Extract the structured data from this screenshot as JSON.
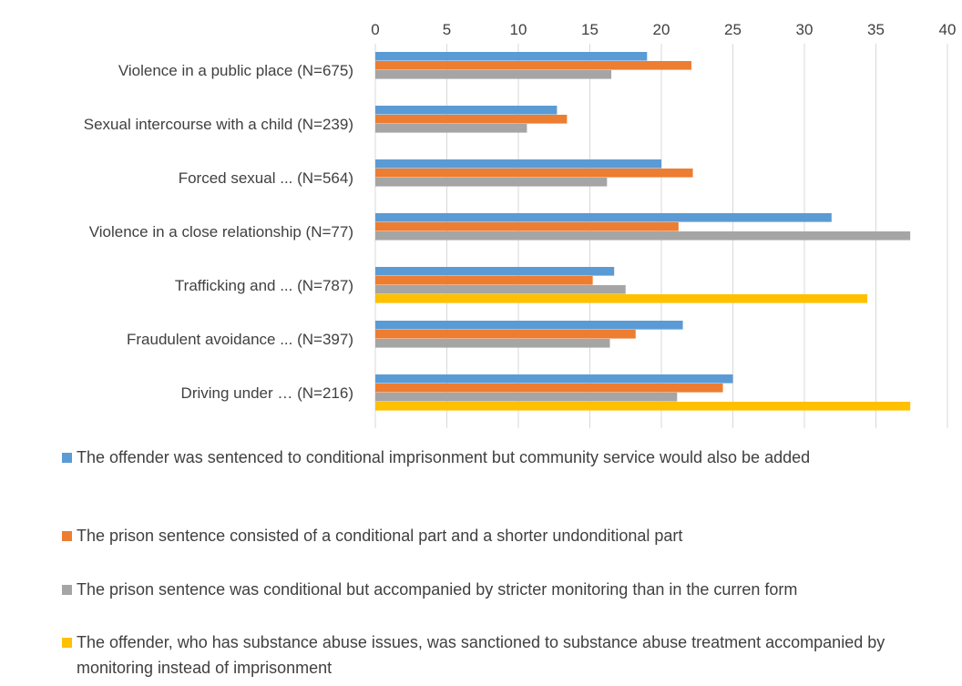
{
  "chart_data": {
    "type": "bar",
    "orientation": "horizontal",
    "title": "",
    "xlabel": "",
    "ylabel": "",
    "xlim": [
      0,
      40
    ],
    "x_ticks": [
      0,
      5,
      10,
      15,
      20,
      25,
      30,
      35,
      40
    ],
    "x_axis_position": "top",
    "grid": true,
    "legend_position": "bottom",
    "categories": [
      "Violence in a public place (N=675)",
      "Sexual intercourse with a child (N=239)",
      "Forced sexual ... (N=564)",
      "Violence in a close relationship (N=77)",
      "Trafficking and ... (N=787)",
      "Fraudulent avoidance ... (N=397)",
      "Driving under … (N=216)"
    ],
    "series": [
      {
        "name": "The offender was sentenced to conditional imprisonment but community service would also be added",
        "color": "#5B9BD5",
        "values": [
          19.0,
          12.7,
          20.0,
          31.9,
          16.7,
          21.5,
          25.0
        ]
      },
      {
        "name": "The prison sentence consisted of a conditional part and a shorter undonditional part",
        "color": "#ED7D31",
        "values": [
          22.1,
          13.4,
          22.2,
          21.2,
          15.2,
          18.2,
          24.3
        ]
      },
      {
        "name": "The prison sentence was conditional but accompanied by stricter monitoring than in the curren form",
        "color": "#A5A5A5",
        "values": [
          16.5,
          10.6,
          16.2,
          37.4,
          17.5,
          16.4,
          21.1
        ]
      },
      {
        "name": "The offender, who has substance abuse issues, was sanctioned to substance abuse treatment accompanied by monitoring instead of imprisonment",
        "color": "#FFC000",
        "values": [
          null,
          null,
          null,
          null,
          34.4,
          null,
          37.4
        ]
      }
    ]
  }
}
